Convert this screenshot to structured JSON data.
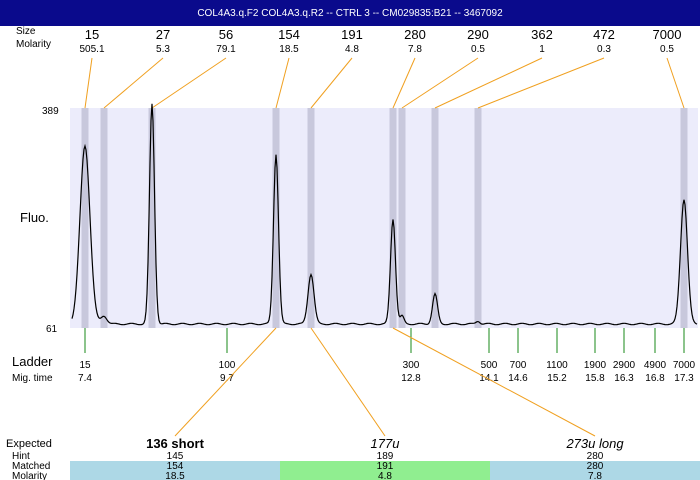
{
  "chart_data": {
    "type": "line",
    "title": "COL4A3.q.F2  COL4A3.q.R2 -- CTRL 3 -- CM029835:B21 -- 3467092",
    "ylabel": "Fluo.",
    "ylim": [
      61,
      389
    ],
    "y_ticks": [
      "389",
      "61"
    ],
    "header_labels": {
      "size": "Size",
      "molarity": "Molarity"
    },
    "peaks": [
      {
        "size": "15",
        "molarity": "505.1"
      },
      {
        "size": "27",
        "molarity": "5.3"
      },
      {
        "size": "56",
        "molarity": "79.1"
      },
      {
        "size": "154",
        "molarity": "18.5"
      },
      {
        "size": "191",
        "molarity": "4.8"
      },
      {
        "size": "280",
        "molarity": "7.8"
      },
      {
        "size": "290",
        "molarity": "0.5"
      },
      {
        "size": "362",
        "molarity": "1"
      },
      {
        "size": "472",
        "molarity": "0.3"
      },
      {
        "size": "7000",
        "molarity": "0.5"
      }
    ],
    "ladder_label": "Ladder",
    "migtime_label": "Mig. time",
    "ladder": [
      {
        "size": "15",
        "migtime": "7.4"
      },
      {
        "size": "100",
        "migtime": "9.7"
      },
      {
        "size": "300",
        "migtime": "12.8"
      },
      {
        "size": "500",
        "migtime": "14.1"
      },
      {
        "size": "700",
        "migtime": "14.6"
      },
      {
        "size": "1100",
        "migtime": "15.2"
      },
      {
        "size": "1900",
        "migtime": "15.8"
      },
      {
        "size": "2900",
        "migtime": "16.3"
      },
      {
        "size": "4900",
        "migtime": "16.8"
      },
      {
        "size": "7000",
        "migtime": "17.3"
      }
    ],
    "table": {
      "row_labels": {
        "expected": "Expected",
        "hint": "Hint",
        "matched": "Matched",
        "molarity": "Molarity"
      },
      "columns": [
        {
          "expected": "136 short",
          "hint": "145",
          "matched": "154",
          "molarity": "18.5",
          "color": "#add8e6",
          "style": "bold"
        },
        {
          "expected": "177u",
          "hint": "189",
          "matched": "191",
          "molarity": "4.8",
          "color": "#90ee90",
          "style": "italic"
        },
        {
          "expected": "273u long",
          "hint": "280",
          "matched": "280",
          "molarity": "7.8",
          "color": "#add8e6",
          "style": "italic"
        }
      ]
    }
  }
}
